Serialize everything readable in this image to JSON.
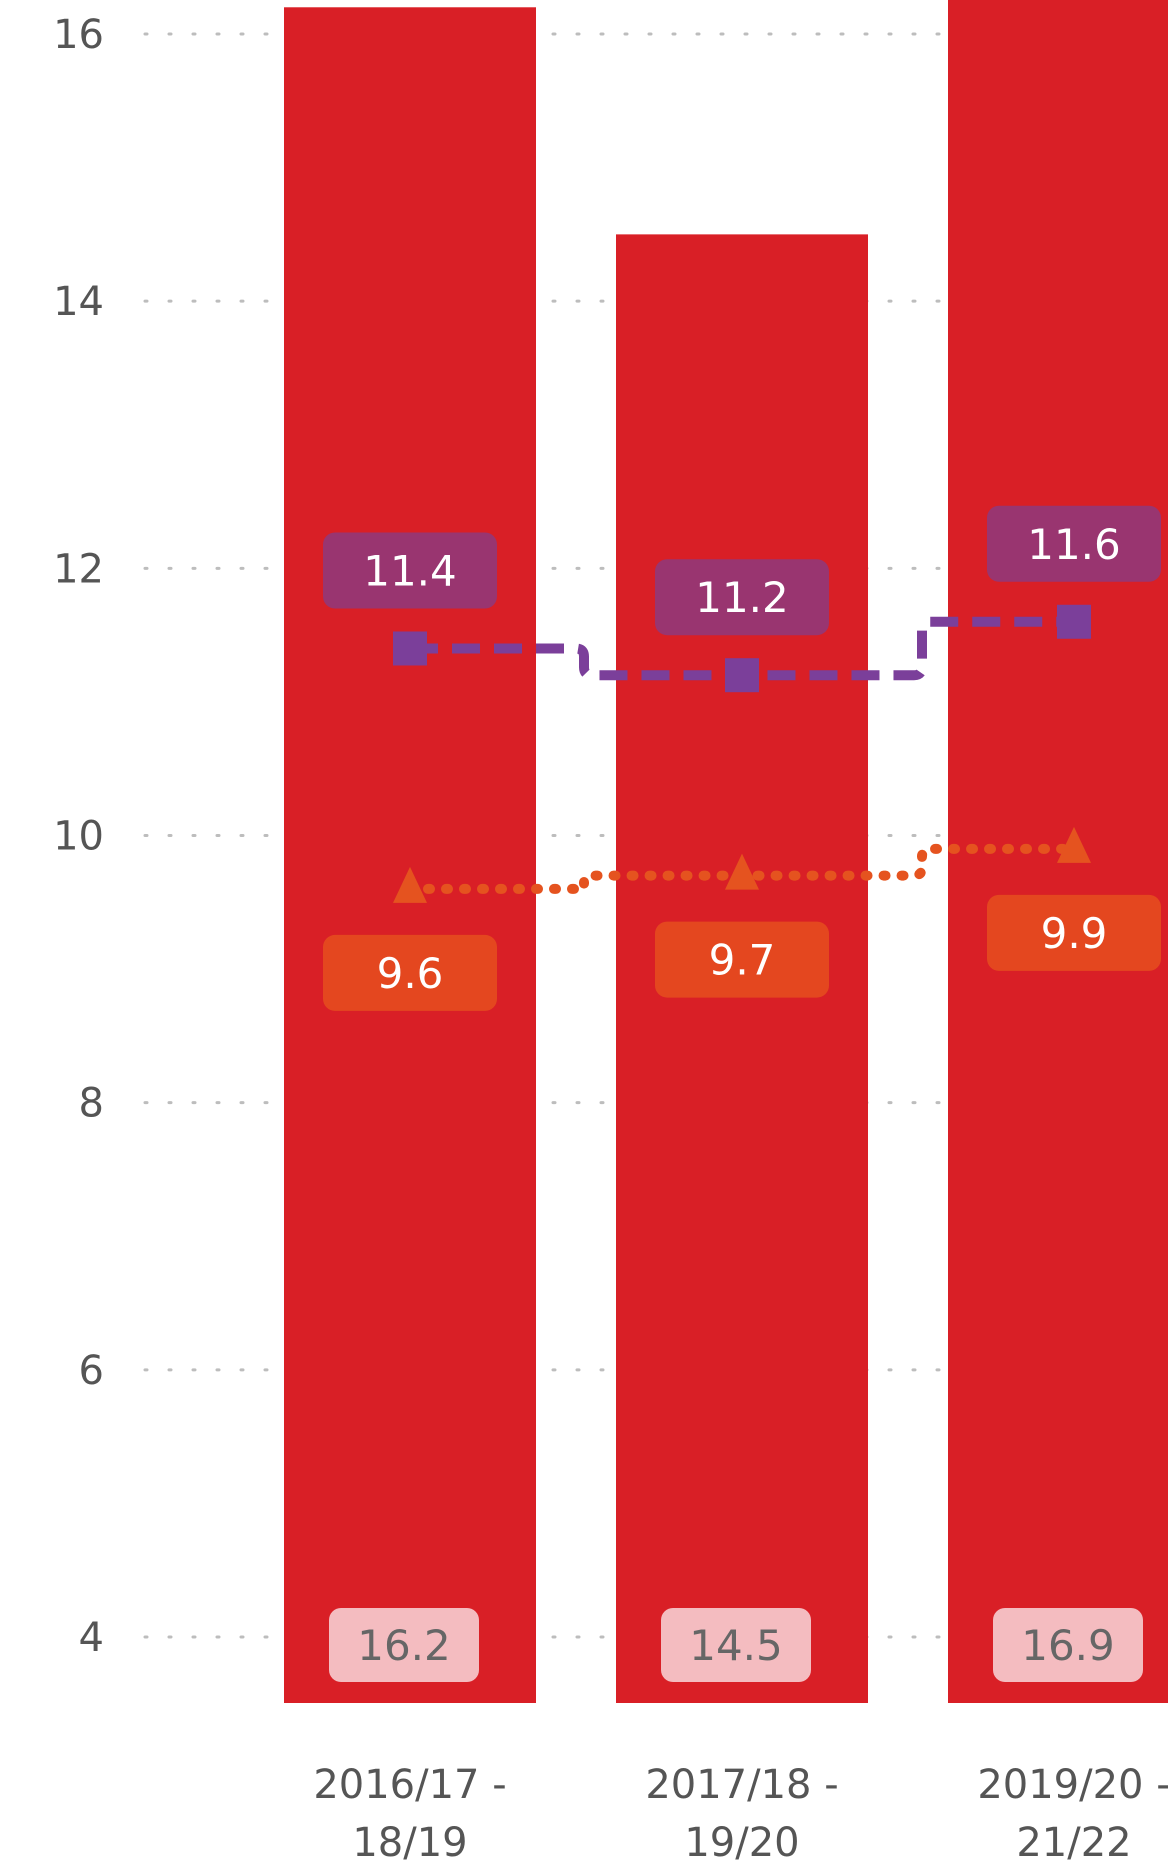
{
  "chart_data": {
    "type": "bar",
    "categories": [
      "2016/17 - 18/19",
      "2017/18 - 19/20",
      "2019/20 - 21/22"
    ],
    "category_lines": [
      [
        "2016/17 -",
        "18/19"
      ],
      [
        "2017/18 -",
        "19/20"
      ],
      [
        "2019/20 -",
        "21/22"
      ]
    ],
    "yticks": [
      4,
      6,
      8,
      10,
      12,
      14,
      16
    ],
    "ylim": [
      3.5,
      16.2
    ],
    "grid": "dotted horizontal",
    "series": [
      {
        "kind": "bar",
        "values": [
          16.2,
          14.5,
          16.9
        ],
        "color": "#d91f26",
        "label_bg": "#f4bcc0",
        "label_color": "#666666"
      },
      {
        "kind": "line",
        "style": "dashed",
        "marker": "square",
        "values": [
          11.4,
          11.2,
          11.6
        ],
        "color": "#7b3f9a",
        "label_bg": "#993570",
        "labels_above": true
      },
      {
        "kind": "line",
        "style": "dotted",
        "marker": "triangle",
        "values": [
          9.6,
          9.7,
          9.9
        ],
        "color": "#e5531f",
        "label_bg": "#e4471f",
        "labels_above": false
      }
    ]
  }
}
